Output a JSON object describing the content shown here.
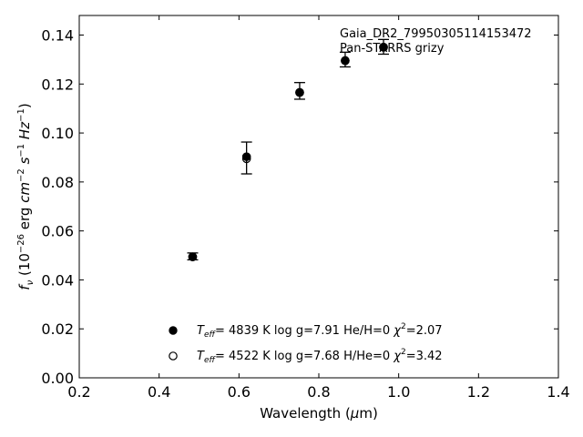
{
  "chart_data": {
    "type": "scatter",
    "xlabel": "Wavelength (μm)",
    "ylabel": "f_ν (10^-26 erg cm^-2 s^-1 Hz^-1)",
    "xlim": [
      0.2,
      1.4
    ],
    "ylim": [
      0.0,
      0.148
    ],
    "x_ticks": [
      "0.2",
      "0.4",
      "0.6",
      "0.8",
      "1.0",
      "1.2",
      "1.4"
    ],
    "y_ticks": [
      "0.00",
      "0.02",
      "0.04",
      "0.06",
      "0.08",
      "0.10",
      "0.12",
      "0.14"
    ],
    "grid": false,
    "legend_placement": "lower-center",
    "annotations": [
      "Gaia_DR2_79950305114153472",
      "Pan-STARRS grizy"
    ],
    "observed": {
      "x": [
        0.484,
        0.619,
        0.752,
        0.866,
        0.962
      ],
      "y": [
        0.0496,
        0.0898,
        0.1172,
        0.13,
        0.1352
      ],
      "err": [
        0.0014,
        0.0065,
        0.0034,
        0.003,
        0.003
      ]
    },
    "series": [
      {
        "name": "Teff= 4839 K  log g=7.91  He/H=0  χ²=2.07",
        "marker": "filled",
        "x": [
          0.484,
          0.619,
          0.752,
          0.866,
          0.962
        ],
        "y": [
          0.0494,
          0.0903,
          0.1165,
          0.1295,
          0.135
        ]
      },
      {
        "name": "Teff= 4522 K  log g=7.68  H/He=0  χ²=3.42",
        "marker": "open",
        "x": [
          0.484,
          0.619,
          0.752,
          0.866,
          0.962
        ],
        "y": [
          0.0494,
          0.0895,
          0.1166,
          0.1296,
          0.1351
        ]
      }
    ]
  }
}
